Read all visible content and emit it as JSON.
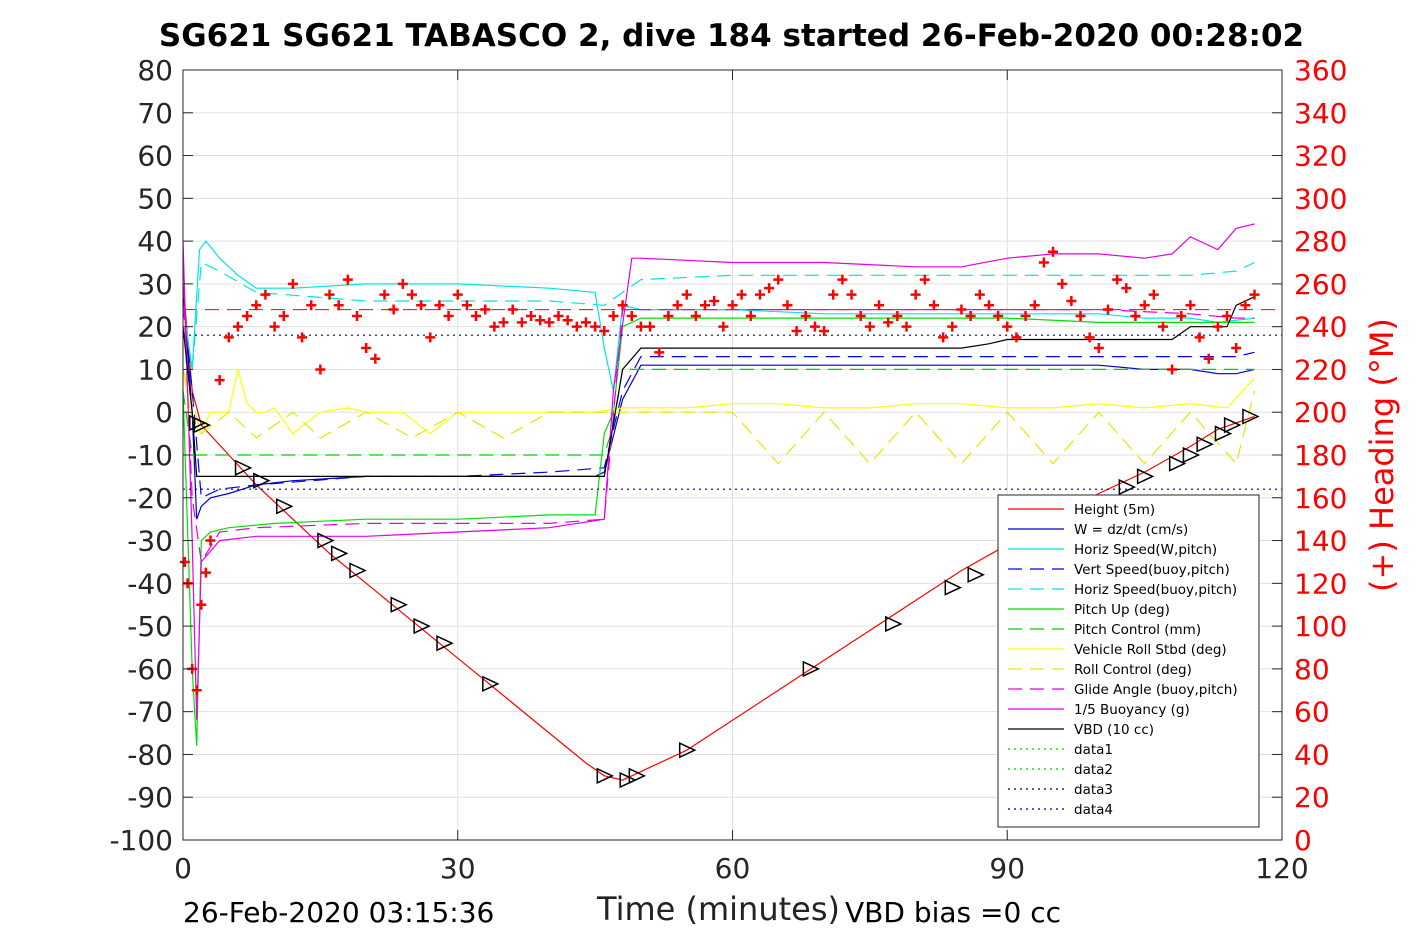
{
  "title": "SG621 SG621 TABASCO 2, dive 184 started 26-Feb-2020 00:28:02",
  "footer": {
    "timestamp": "26-Feb-2020 03:15:36",
    "vbd_bias": "VBD bias =0 cc"
  },
  "chart_data": {
    "type": "line",
    "xlabel": "Time (minutes)",
    "ylabel": "",
    "y2label": "(+) Heading (°M)",
    "xlim": [
      0,
      120
    ],
    "ylim": [
      -100,
      80
    ],
    "y2lim": [
      0,
      360
    ],
    "x_ticks": [
      "0",
      "30",
      "60",
      "90",
      "120"
    ],
    "y_ticks": [
      "80",
      "70",
      "60",
      "50",
      "40",
      "30",
      "20",
      "10",
      "0",
      "-10",
      "-20",
      "-30",
      "-40",
      "-50",
      "-60",
      "-70",
      "-80",
      "-90",
      "-100"
    ],
    "y2_ticks": [
      "360",
      "340",
      "320",
      "300",
      "280",
      "260",
      "240",
      "220",
      "200",
      "180",
      "160",
      "140",
      "120",
      "100",
      "80",
      "60",
      "40",
      "20",
      "0"
    ],
    "grid": true,
    "legend_position": "bottom-right",
    "colors": {
      "height": "#ff0000",
      "w": "#0000cc",
      "horiz_w": "#00e5e5",
      "vert_buoy": "#0000ff",
      "horiz_buoy": "#00e5e5",
      "pitch_up": "#00e000",
      "pitch_control": "#00d000",
      "roll": "#ffff00",
      "roll_control": "#e6e600",
      "glide": "#e600e6",
      "buoyancy": "#e600e6",
      "vbd": "#000000",
      "heading": "#ff0000",
      "axis_right": "#ff0000"
    },
    "series": [
      {
        "name": "Height (5m)",
        "key": "height",
        "style": "solid",
        "x": [
          0,
          1,
          2,
          5,
          8,
          12,
          16,
          20,
          24,
          28,
          32,
          36,
          40,
          44,
          46,
          48,
          50,
          55,
          60,
          65,
          70,
          75,
          80,
          85,
          90,
          95,
          100,
          105,
          110,
          113,
          117
        ],
        "y": [
          30,
          5,
          -3,
          -10,
          -17,
          -25,
          -33,
          -40,
          -47,
          -54,
          -61,
          -68,
          -75,
          -82,
          -85,
          -86,
          -84,
          -79,
          -72,
          -65,
          -58,
          -51,
          -44,
          -37,
          -31,
          -25,
          -19,
          -14,
          -8,
          -4,
          -1
        ]
      },
      {
        "name": "W = dz/dt (cm/s)",
        "key": "w",
        "style": "solid",
        "x": [
          0,
          1,
          1.5,
          2,
          3,
          5,
          8,
          12,
          20,
          30,
          40,
          45,
          46,
          48,
          50,
          55,
          60,
          65,
          70,
          75,
          80,
          85,
          90,
          95,
          100,
          105,
          110,
          113,
          115,
          117
        ],
        "y": [
          28,
          0,
          -25,
          -22,
          -20,
          -19,
          -17,
          -16,
          -15,
          -15,
          -15,
          -15,
          -14,
          3,
          11,
          11,
          11,
          11,
          11,
          11,
          11,
          11,
          11,
          11,
          11,
          10,
          10,
          9,
          9,
          10
        ]
      },
      {
        "name": "Horiz Speed(W,pitch)",
        "key": "horiz_w",
        "style": "solid",
        "x": [
          0,
          1,
          1.8,
          2.5,
          4,
          6,
          8,
          12,
          20,
          30,
          40,
          45,
          46,
          47,
          48,
          50,
          55,
          60,
          70,
          80,
          90,
          100,
          105,
          110,
          113,
          117
        ],
        "y": [
          25,
          10,
          38,
          40,
          36,
          32,
          29,
          29,
          30,
          30,
          29,
          28,
          15,
          5,
          25,
          24,
          24,
          24,
          23,
          23,
          23,
          23,
          22,
          22,
          21,
          22
        ]
      },
      {
        "name": "Vert Speed(buoy,pitch)",
        "key": "vert_buoy",
        "style": "dashed",
        "x": [
          0,
          1,
          2,
          4,
          8,
          20,
          30,
          40,
          46,
          48,
          50,
          60,
          70,
          80,
          90,
          100,
          110,
          115,
          117
        ],
        "y": [
          25,
          5,
          -20,
          -18,
          -17,
          -15,
          -15,
          -14,
          -13,
          5,
          13,
          13,
          13,
          13,
          13,
          13,
          13,
          13,
          14
        ]
      },
      {
        "name": "Horiz Speed(buoy,pitch)",
        "key": "horiz_buoy",
        "style": "dashed",
        "x": [
          0,
          1,
          2,
          4,
          8,
          20,
          30,
          40,
          46,
          48,
          50,
          60,
          70,
          80,
          90,
          100,
          110,
          115,
          117
        ],
        "y": [
          25,
          10,
          35,
          33,
          28,
          26,
          26,
          26,
          25,
          28,
          31,
          32,
          32,
          32,
          32,
          32,
          32,
          33,
          35
        ]
      },
      {
        "name": "Pitch Up (deg)",
        "key": "pitch_up",
        "style": "solid",
        "x": [
          0,
          1,
          1.5,
          2,
          3,
          5,
          10,
          20,
          30,
          40,
          45,
          46,
          47,
          48,
          50,
          60,
          70,
          80,
          90,
          100,
          110,
          115,
          117
        ],
        "y": [
          5,
          -60,
          -78,
          -30,
          -28,
          -27,
          -26,
          -25,
          -25,
          -24,
          -24,
          -5,
          0,
          20,
          22,
          22,
          22,
          22,
          22,
          21,
          21,
          21,
          21
        ]
      },
      {
        "name": "Pitch Control (mm)",
        "key": "pitch_control",
        "style": "dashed",
        "x": [
          0,
          1,
          2,
          5,
          20,
          40,
          46,
          47,
          48,
          50,
          60,
          80,
          100,
          110,
          117
        ],
        "y": [
          5,
          -10,
          -10,
          -10,
          -10,
          -10,
          -10,
          -3,
          10,
          10,
          10,
          10,
          10,
          10,
          10
        ]
      },
      {
        "name": "Vehicle Roll Stbd (deg)",
        "key": "roll",
        "style": "solid",
        "x": [
          0,
          1,
          2,
          3,
          5,
          6,
          7,
          8,
          9,
          10,
          12,
          15,
          18,
          20,
          24,
          27,
          30,
          35,
          40,
          45,
          48,
          50,
          55,
          60,
          65,
          70,
          75,
          80,
          85,
          90,
          95,
          100,
          105,
          110,
          114,
          117
        ],
        "y": [
          10,
          -2,
          -5,
          0,
          0,
          10,
          2,
          0,
          0,
          1,
          -5,
          0,
          1,
          0,
          0,
          -5,
          0,
          0,
          0,
          0,
          1,
          1,
          1,
          2,
          2,
          1,
          1,
          2,
          2,
          1,
          1,
          2,
          1,
          2,
          1,
          8
        ]
      },
      {
        "name": "Roll Control (deg)",
        "key": "roll_control",
        "style": "dashed",
        "x": [
          0,
          2,
          5,
          8,
          12,
          15,
          20,
          25,
          30,
          35,
          40,
          46,
          48,
          50,
          60,
          65,
          70,
          75,
          80,
          85,
          90,
          95,
          100,
          105,
          110,
          115,
          117
        ],
        "y": [
          10,
          -5,
          0,
          -6,
          0,
          -6,
          0,
          -6,
          0,
          -6,
          0,
          0,
          0,
          0,
          0,
          -12,
          0,
          -12,
          0,
          -12,
          0,
          -12,
          0,
          -12,
          0,
          -12,
          5
        ]
      },
      {
        "name": "Glide Angle (buoy,pitch)",
        "key": "glide",
        "style": "dashed",
        "x": [
          0,
          1,
          2,
          4,
          8,
          20,
          30,
          40,
          46,
          48,
          50,
          60,
          70,
          80,
          90,
          100,
          110,
          115,
          117
        ],
        "y": [
          30,
          -20,
          -35,
          -28,
          -27,
          -26,
          -26,
          -26,
          -25,
          24,
          24,
          24,
          24,
          24,
          24,
          24,
          23,
          22,
          22
        ]
      },
      {
        "name": "1/5 Buoyancy (g)",
        "key": "buoyancy",
        "style": "solid",
        "x": [
          0,
          1,
          1.5,
          2,
          4,
          8,
          20,
          30,
          40,
          46,
          47,
          49,
          50,
          60,
          70,
          80,
          85,
          90,
          95,
          100,
          105,
          108,
          110,
          113,
          115,
          117
        ],
        "y": [
          40,
          -30,
          -72,
          -35,
          -30,
          -29,
          -29,
          -28,
          -27,
          -25,
          5,
          36,
          36,
          35,
          35,
          34,
          34,
          36,
          37,
          37,
          36,
          37,
          41,
          38,
          43,
          44
        ]
      },
      {
        "name": "VBD (10 cc)",
        "key": "vbd",
        "style": "solid",
        "x": [
          0,
          1,
          1.5,
          2,
          10,
          20,
          30,
          40,
          46,
          48,
          50,
          60,
          70,
          80,
          85,
          88,
          90,
          100,
          105,
          108,
          110,
          114,
          115,
          117
        ],
        "y": [
          20,
          0,
          -15,
          -15,
          -15,
          -15,
          -15,
          -15,
          -15,
          10,
          15,
          15,
          15,
          15,
          15,
          16,
          17,
          17,
          17,
          17,
          20,
          20,
          25,
          27
        ]
      },
      {
        "name": "data1",
        "key": "data1",
        "style": "dotted",
        "x": [],
        "y": []
      },
      {
        "name": "data2",
        "key": "data2",
        "style": "dotted",
        "x": [],
        "y": []
      },
      {
        "name": "data3",
        "key": "data3",
        "style": "dotted",
        "x": [
          0,
          120
        ],
        "y": [
          18,
          18
        ]
      },
      {
        "name": "data4",
        "key": "data4",
        "style": "dotted",
        "x": [
          0,
          120
        ],
        "y": [
          -18,
          -18
        ]
      }
    ],
    "reference_lines": [
      {
        "key": "heading_ref",
        "style": "dashed",
        "color": "#ff0000",
        "x": [
          0,
          120
        ],
        "y": [
          24,
          24
        ]
      }
    ],
    "heading": {
      "axis": "right",
      "marker": "+",
      "x": [
        0.2,
        0.5,
        1,
        1.5,
        2,
        2.5,
        3,
        4,
        5,
        6,
        7,
        8,
        9,
        10,
        11,
        12,
        13,
        14,
        15,
        16,
        17,
        18,
        19,
        20,
        21,
        22,
        23,
        24,
        25,
        26,
        27,
        28,
        29,
        30,
        31,
        32,
        33,
        34,
        35,
        36,
        37,
        38,
        39,
        40,
        41,
        42,
        43,
        44,
        45,
        46,
        47,
        48,
        49,
        50,
        51,
        52,
        53,
        54,
        55,
        56,
        57,
        58,
        59,
        60,
        61,
        62,
        63,
        64,
        65,
        66,
        67,
        68,
        69,
        70,
        71,
        72,
        73,
        74,
        75,
        76,
        77,
        78,
        79,
        80,
        81,
        82,
        83,
        84,
        85,
        86,
        87,
        88,
        89,
        90,
        91,
        92,
        93,
        94,
        95,
        96,
        97,
        98,
        99,
        100,
        101,
        102,
        103,
        104,
        105,
        106,
        107,
        108,
        109,
        110,
        111,
        112,
        113,
        114,
        115,
        116,
        117
      ],
      "y": [
        130,
        120,
        80,
        70,
        110,
        125,
        140,
        215,
        235,
        240,
        245,
        250,
        255,
        240,
        245,
        260,
        235,
        250,
        220,
        255,
        250,
        262,
        245,
        230,
        225,
        255,
        248,
        260,
        255,
        250,
        235,
        250,
        245,
        255,
        250,
        245,
        248,
        240,
        242,
        248,
        242,
        245,
        243,
        242,
        245,
        243,
        240,
        242,
        240,
        238,
        245,
        250,
        245,
        240,
        240,
        228,
        245,
        250,
        255,
        245,
        250,
        252,
        240,
        250,
        255,
        245,
        255,
        258,
        262,
        250,
        238,
        245,
        240,
        238,
        255,
        262,
        255,
        245,
        240,
        250,
        242,
        245,
        240,
        255,
        262,
        250,
        235,
        240,
        248,
        245,
        255,
        250,
        245,
        240,
        235,
        245,
        250,
        270,
        275,
        260,
        252,
        245,
        235,
        230,
        248,
        262,
        258,
        245,
        250,
        255,
        240,
        220,
        245,
        250,
        235,
        225,
        240,
        245,
        230,
        250,
        255
      ]
    },
    "vbd_markers": {
      "marker": "triangle",
      "x": [
        1.5,
        2,
        6.5,
        8.5,
        11,
        15.5,
        17,
        19,
        23.5,
        26,
        28.5,
        33.5,
        46,
        48.5,
        49.5,
        55,
        68.5,
        77.5,
        84,
        86.5,
        90,
        103,
        105,
        108.5,
        110,
        111.5,
        113.5,
        114.5,
        116.5
      ],
      "y": [
        -2.5,
        -3,
        -13,
        -16,
        -22,
        -30,
        -33,
        -37,
        -45,
        -50,
        -54,
        -63.5,
        -85,
        -86,
        -85,
        -79,
        -60,
        -49.5,
        -41,
        -38,
        -33,
        -17.5,
        -15,
        -12,
        -10,
        -7.5,
        -5,
        -3,
        -1
      ]
    }
  }
}
